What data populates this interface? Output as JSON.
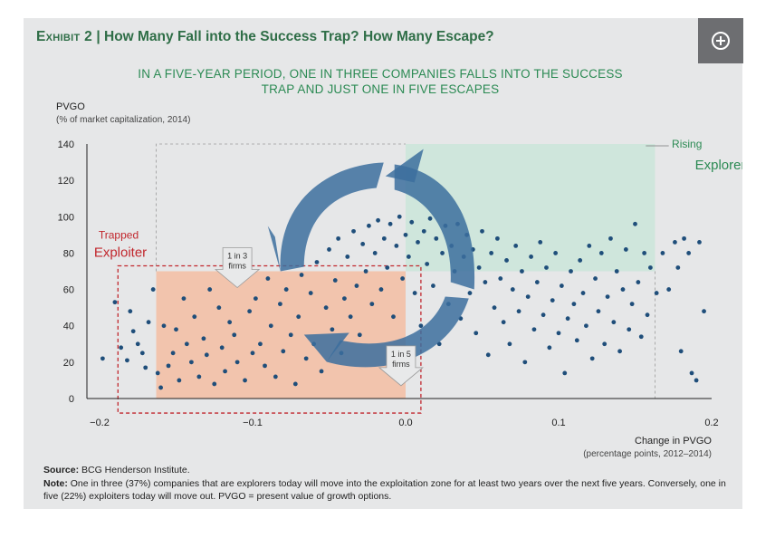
{
  "exhibit": {
    "label": "Exhibit 2",
    "separator": "|",
    "title": "How Many Fall into the Success Trap? How Many Escape?"
  },
  "subtitle_line1": "IN A FIVE-YEAR PERIOD, ONE IN THREE COMPANIES FALLS INTO THE SUCCESS",
  "subtitle_line2": "TRAP AND JUST ONE IN FIVE ESCAPES",
  "expand_icon": "plus-circle-icon",
  "chart_data": {
    "type": "scatter",
    "title": "IN A FIVE-YEAR PERIOD, ONE IN THREE COMPANIES FALLS INTO THE SUCCESS TRAP AND JUST ONE IN FIVE ESCAPES",
    "ylabel": "PVGO",
    "ylabel_sub": "(% of market capitalization, 2014)",
    "xlabel": "Change in PVGO",
    "xlabel_sub": "(percentage points, 2012–2014)",
    "xlim": [
      -0.2,
      0.2
    ],
    "ylim": [
      0,
      140
    ],
    "xticks": [
      -0.2,
      -0.1,
      0.0,
      0.1,
      0.2
    ],
    "xtick_labels": [
      "−0.2",
      "−0.1",
      "0.0",
      "0.1",
      "0.2"
    ],
    "yticks": [
      0,
      20,
      40,
      60,
      80,
      100,
      120,
      140
    ],
    "ytick_labels": [
      "0",
      "20",
      "40",
      "60",
      "80",
      "100",
      "120",
      "140"
    ],
    "grid": false,
    "zones": [
      {
        "name": "Trapped Exploiter",
        "label_top": "Trapped",
        "label_bottom": "Exploiter",
        "x": [
          -0.163,
          0.0
        ],
        "y": [
          0,
          70
        ],
        "color": "#f2c4ad"
      },
      {
        "name": "Rising Explorer",
        "label_top": "Rising",
        "label_bottom": "Explorer",
        "x": [
          0.0,
          0.163
        ],
        "y": [
          70,
          140
        ],
        "color": "#cfe6dc"
      }
    ],
    "transitions": [
      {
        "label_line1": "1 in 3",
        "label_line2": "firms",
        "share": "37%",
        "direction": "into exploitation zone",
        "x": -0.11,
        "y": 70
      },
      {
        "label_line1": "1 in 5",
        "label_line2": "firms",
        "share": "22%",
        "direction": "out of exploitation zone",
        "x": 0.0,
        "y": 20
      }
    ],
    "series": [
      {
        "name": "Companies",
        "color": "#1f4e7a",
        "points": [
          [
            -0.198,
            22
          ],
          [
            -0.19,
            53
          ],
          [
            -0.186,
            28
          ],
          [
            -0.182,
            21
          ],
          [
            -0.18,
            48
          ],
          [
            -0.178,
            37
          ],
          [
            -0.175,
            30
          ],
          [
            -0.172,
            25
          ],
          [
            -0.17,
            17
          ],
          [
            -0.168,
            42
          ],
          [
            -0.165,
            60
          ],
          [
            -0.162,
            14
          ],
          [
            -0.16,
            6
          ],
          [
            -0.158,
            40
          ],
          [
            -0.155,
            18
          ],
          [
            -0.152,
            25
          ],
          [
            -0.15,
            38
          ],
          [
            -0.148,
            10
          ],
          [
            -0.145,
            55
          ],
          [
            -0.143,
            30
          ],
          [
            -0.14,
            20
          ],
          [
            -0.138,
            45
          ],
          [
            -0.135,
            12
          ],
          [
            -0.132,
            33
          ],
          [
            -0.13,
            24
          ],
          [
            -0.128,
            60
          ],
          [
            -0.125,
            8
          ],
          [
            -0.122,
            50
          ],
          [
            -0.12,
            28
          ],
          [
            -0.118,
            15
          ],
          [
            -0.115,
            42
          ],
          [
            -0.112,
            35
          ],
          [
            -0.11,
            20
          ],
          [
            -0.108,
            64
          ],
          [
            -0.105,
            10
          ],
          [
            -0.102,
            48
          ],
          [
            -0.1,
            25
          ],
          [
            -0.098,
            55
          ],
          [
            -0.095,
            30
          ],
          [
            -0.092,
            18
          ],
          [
            -0.09,
            66
          ],
          [
            -0.088,
            40
          ],
          [
            -0.085,
            12
          ],
          [
            -0.082,
            52
          ],
          [
            -0.08,
            26
          ],
          [
            -0.078,
            60
          ],
          [
            -0.075,
            35
          ],
          [
            -0.072,
            8
          ],
          [
            -0.07,
            45
          ],
          [
            -0.068,
            68
          ],
          [
            -0.065,
            22
          ],
          [
            -0.062,
            58
          ],
          [
            -0.06,
            30
          ],
          [
            -0.058,
            75
          ],
          [
            -0.055,
            15
          ],
          [
            -0.052,
            50
          ],
          [
            -0.05,
            82
          ],
          [
            -0.048,
            38
          ],
          [
            -0.046,
            65
          ],
          [
            -0.044,
            88
          ],
          [
            -0.042,
            25
          ],
          [
            -0.04,
            55
          ],
          [
            -0.038,
            78
          ],
          [
            -0.036,
            45
          ],
          [
            -0.034,
            92
          ],
          [
            -0.032,
            62
          ],
          [
            -0.03,
            35
          ],
          [
            -0.028,
            85
          ],
          [
            -0.026,
            70
          ],
          [
            -0.024,
            95
          ],
          [
            -0.022,
            52
          ],
          [
            -0.02,
            80
          ],
          [
            -0.018,
            98
          ],
          [
            -0.016,
            60
          ],
          [
            -0.014,
            88
          ],
          [
            -0.012,
            72
          ],
          [
            -0.01,
            96
          ],
          [
            -0.008,
            45
          ],
          [
            -0.006,
            84
          ],
          [
            -0.004,
            100
          ],
          [
            -0.002,
            66
          ],
          [
            0.0,
            90
          ],
          [
            0.002,
            78
          ],
          [
            0.004,
            97
          ],
          [
            0.006,
            58
          ],
          [
            0.008,
            86
          ],
          [
            0.01,
            40
          ],
          [
            0.012,
            92
          ],
          [
            0.014,
            74
          ],
          [
            0.016,
            99
          ],
          [
            0.018,
            62
          ],
          [
            0.02,
            88
          ],
          [
            0.022,
            30
          ],
          [
            0.024,
            80
          ],
          [
            0.026,
            95
          ],
          [
            0.028,
            52
          ],
          [
            0.03,
            84
          ],
          [
            0.032,
            70
          ],
          [
            0.034,
            96
          ],
          [
            0.036,
            44
          ],
          [
            0.038,
            78
          ],
          [
            0.04,
            90
          ],
          [
            0.042,
            58
          ],
          [
            0.044,
            82
          ],
          [
            0.046,
            36
          ],
          [
            0.048,
            72
          ],
          [
            0.05,
            92
          ],
          [
            0.052,
            64
          ],
          [
            0.054,
            24
          ],
          [
            0.056,
            80
          ],
          [
            0.058,
            50
          ],
          [
            0.06,
            88
          ],
          [
            0.062,
            66
          ],
          [
            0.064,
            42
          ],
          [
            0.066,
            76
          ],
          [
            0.068,
            30
          ],
          [
            0.07,
            60
          ],
          [
            0.072,
            84
          ],
          [
            0.074,
            48
          ],
          [
            0.076,
            70
          ],
          [
            0.078,
            20
          ],
          [
            0.08,
            56
          ],
          [
            0.082,
            78
          ],
          [
            0.084,
            38
          ],
          [
            0.086,
            64
          ],
          [
            0.088,
            86
          ],
          [
            0.09,
            46
          ],
          [
            0.092,
            72
          ],
          [
            0.094,
            28
          ],
          [
            0.096,
            54
          ],
          [
            0.098,
            80
          ],
          [
            0.1,
            36
          ],
          [
            0.102,
            62
          ],
          [
            0.104,
            14
          ],
          [
            0.106,
            44
          ],
          [
            0.108,
            70
          ],
          [
            0.11,
            52
          ],
          [
            0.112,
            32
          ],
          [
            0.114,
            76
          ],
          [
            0.116,
            58
          ],
          [
            0.118,
            40
          ],
          [
            0.12,
            84
          ],
          [
            0.122,
            22
          ],
          [
            0.124,
            66
          ],
          [
            0.126,
            48
          ],
          [
            0.128,
            80
          ],
          [
            0.13,
            30
          ],
          [
            0.132,
            56
          ],
          [
            0.134,
            88
          ],
          [
            0.136,
            42
          ],
          [
            0.138,
            70
          ],
          [
            0.14,
            26
          ],
          [
            0.142,
            60
          ],
          [
            0.144,
            82
          ],
          [
            0.146,
            38
          ],
          [
            0.148,
            52
          ],
          [
            0.15,
            96
          ],
          [
            0.152,
            64
          ],
          [
            0.154,
            34
          ],
          [
            0.156,
            80
          ],
          [
            0.158,
            46
          ],
          [
            0.16,
            72
          ],
          [
            0.164,
            58
          ],
          [
            0.168,
            80
          ],
          [
            0.172,
            60
          ],
          [
            0.176,
            86
          ],
          [
            0.178,
            72
          ],
          [
            0.18,
            26
          ],
          [
            0.182,
            88
          ],
          [
            0.185,
            80
          ],
          [
            0.187,
            14
          ],
          [
            0.19,
            10
          ],
          [
            0.192,
            86
          ],
          [
            0.195,
            48
          ]
        ]
      }
    ]
  },
  "source": {
    "label": "Source:",
    "text": "BCG Henderson Institute."
  },
  "note": {
    "label": "Note:",
    "text": "One in three (37%) companies that are explorers today will move into the exploitation zone for at least two years over the next five years. Conversely, one in five (22%) exploiters today will move out. PVGO = present value of growth options."
  }
}
